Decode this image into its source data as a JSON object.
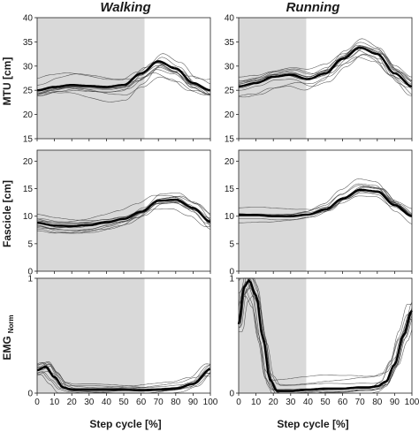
{
  "columns": [
    {
      "key": "walking",
      "title": "Walking",
      "stance_end_pct": 62
    },
    {
      "key": "running",
      "title": "Running",
      "stance_end_pct": 39
    }
  ],
  "rows": [
    {
      "key": "mtu",
      "ylabel": "MTU [cm]",
      "ylim": [
        15,
        40
      ],
      "yticks": [
        "15",
        "20",
        "25",
        "30",
        "35",
        "40"
      ]
    },
    {
      "key": "fascicle",
      "ylabel": "Fascicle [cm]",
      "ylim": [
        0,
        22
      ],
      "yticks": [
        "0",
        "5",
        "10",
        "15",
        "20"
      ]
    },
    {
      "key": "emg",
      "ylabel_main": "EMG",
      "ylabel_sub": "Norm",
      "ylim": [
        0,
        1
      ],
      "yticks": [
        "0",
        "1"
      ]
    }
  ],
  "xlabel": "Step cycle [%]",
  "xticks": [
    "0",
    "10",
    "20",
    "30",
    "40",
    "50",
    "60",
    "70",
    "80",
    "90",
    "100"
  ],
  "chart_data": [
    {
      "type": "line",
      "panel": "walking-mtu",
      "xlim": [
        0,
        100
      ],
      "ylim": [
        15,
        40
      ],
      "shaded_region": [
        0,
        62
      ],
      "x": [
        0,
        10,
        20,
        30,
        40,
        50,
        60,
        70,
        80,
        90,
        100
      ],
      "mean": [
        25,
        25.7,
        26.1,
        25.9,
        25.7,
        26.1,
        28.5,
        31,
        29.5,
        26.5,
        25
      ],
      "individual_curves": 12,
      "individual_spread": 3.2
    },
    {
      "type": "line",
      "panel": "running-mtu",
      "xlim": [
        0,
        100
      ],
      "ylim": [
        15,
        40
      ],
      "shaded_region": [
        0,
        39
      ],
      "x": [
        0,
        10,
        20,
        30,
        40,
        50,
        60,
        70,
        80,
        90,
        100
      ],
      "mean": [
        25.8,
        26.5,
        27.8,
        28.2,
        27.3,
        28.5,
        31.5,
        33.8,
        32.5,
        28.5,
        25.8
      ],
      "individual_curves": 12,
      "individual_spread": 3.0
    },
    {
      "type": "line",
      "panel": "walking-fascicle",
      "xlim": [
        0,
        100
      ],
      "ylim": [
        0,
        22
      ],
      "shaded_region": [
        0,
        62
      ],
      "x": [
        0,
        10,
        20,
        30,
        40,
        50,
        60,
        70,
        80,
        90,
        100
      ],
      "mean": [
        8.8,
        8.3,
        8.2,
        8.4,
        8.9,
        9.5,
        10.8,
        12.8,
        13,
        11.5,
        9
      ],
      "individual_curves": 12,
      "individual_spread": 1.8
    },
    {
      "type": "line",
      "panel": "running-fascicle",
      "xlim": [
        0,
        100
      ],
      "ylim": [
        0,
        22
      ],
      "shaded_region": [
        0,
        39
      ],
      "x": [
        0,
        10,
        20,
        30,
        40,
        50,
        60,
        70,
        80,
        90,
        100
      ],
      "mean": [
        10.2,
        10.2,
        10,
        10,
        10.3,
        11.2,
        13.2,
        14.8,
        14.5,
        12,
        10
      ],
      "individual_curves": 12,
      "individual_spread": 1.6
    },
    {
      "type": "line",
      "panel": "walking-emg",
      "xlim": [
        0,
        100
      ],
      "ylim": [
        0,
        1
      ],
      "shaded_region": [
        0,
        62
      ],
      "x": [
        0,
        5,
        10,
        15,
        20,
        30,
        40,
        50,
        60,
        70,
        80,
        90,
        100
      ],
      "mean": [
        0.2,
        0.23,
        0.14,
        0.05,
        0.03,
        0.03,
        0.03,
        0.03,
        0.025,
        0.03,
        0.04,
        0.08,
        0.21
      ],
      "individual_curves": 12,
      "individual_spread": 0.06
    },
    {
      "type": "line",
      "panel": "running-emg",
      "xlim": [
        0,
        100
      ],
      "ylim": [
        0,
        1
      ],
      "shaded_region": [
        0,
        39
      ],
      "x": [
        0,
        3,
        6,
        10,
        14,
        18,
        22,
        30,
        40,
        50,
        60,
        70,
        75,
        80,
        85,
        90,
        95,
        100
      ],
      "mean": [
        0.6,
        0.92,
        0.98,
        0.85,
        0.48,
        0.12,
        0.02,
        0.02,
        0.03,
        0.04,
        0.04,
        0.05,
        0.05,
        0.06,
        0.1,
        0.25,
        0.5,
        0.72
      ],
      "individual_curves": 12,
      "individual_spread": 0.07
    }
  ]
}
